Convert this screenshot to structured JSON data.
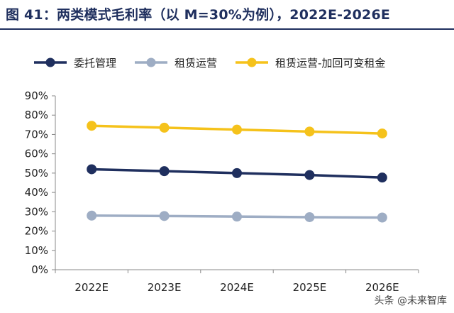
{
  "title": "图 41：两类模式毛利率（以 M=30%为例），2022E-2026E",
  "watermark": "头条 @未来智库",
  "chart_data": {
    "type": "line",
    "categories": [
      "2022E",
      "2023E",
      "2024E",
      "2025E",
      "2026E"
    ],
    "ylim": [
      0,
      90
    ],
    "y_ticks": [
      "0%",
      "10%",
      "20%",
      "30%",
      "40%",
      "50%",
      "60%",
      "70%",
      "80%",
      "90%"
    ],
    "grid": false,
    "legend_position": "top",
    "series": [
      {
        "name": "委托管理",
        "color": "#1f2f5e",
        "values": [
          52,
          51,
          50,
          49,
          47.7
        ]
      },
      {
        "name": "租赁运营",
        "color": "#9eadc4",
        "values": [
          28,
          27.8,
          27.5,
          27.2,
          27
        ]
      },
      {
        "name": "租赁运营-加回可变租金",
        "color": "#f5c21b",
        "values": [
          74.5,
          73.5,
          72.5,
          71.5,
          70.5
        ]
      }
    ]
  }
}
